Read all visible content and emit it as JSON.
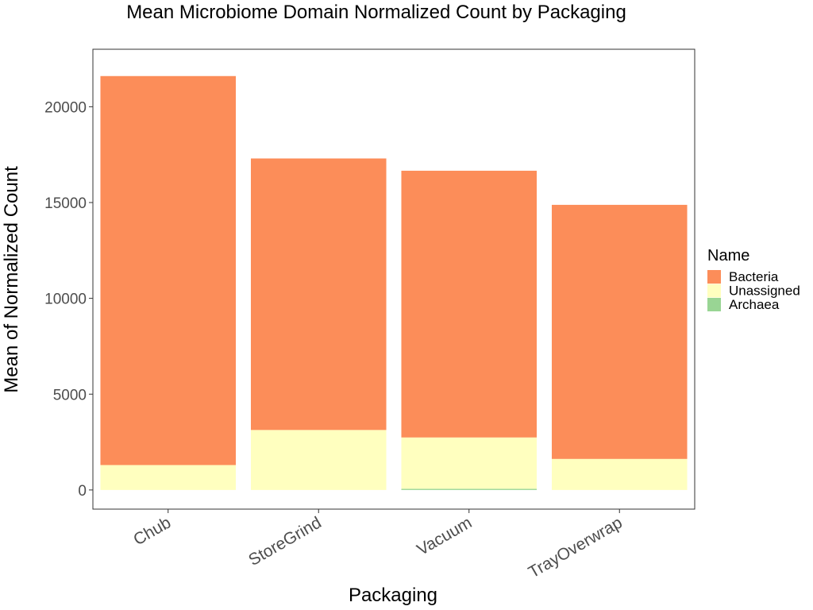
{
  "chart_data": {
    "type": "bar",
    "stacked": true,
    "title": "Mean Microbiome Domain Normalized Count by Packaging",
    "xlabel": "Packaging",
    "ylabel": "Mean of Normalized Count",
    "categories": [
      "Chub",
      "StoreGrind",
      "Vacuum",
      "TrayOverwrap"
    ],
    "series": [
      {
        "name": "Archaea",
        "color": "#99d594",
        "values": [
          0,
          0,
          60,
          0
        ]
      },
      {
        "name": "Unassigned",
        "color": "#ffffbf",
        "values": [
          1300,
          3130,
          2680,
          1620
        ]
      },
      {
        "name": "Bacteria",
        "color": "#fc8d59",
        "values": [
          20300,
          14170,
          13920,
          13260
        ]
      }
    ],
    "ylim": [
      -1000,
      23000
    ],
    "yticks": [
      0,
      5000,
      10000,
      15000,
      20000
    ],
    "grid": false,
    "legend": {
      "title": "Name",
      "placement": "right",
      "order": [
        "Bacteria",
        "Unassigned",
        "Archaea"
      ]
    }
  }
}
